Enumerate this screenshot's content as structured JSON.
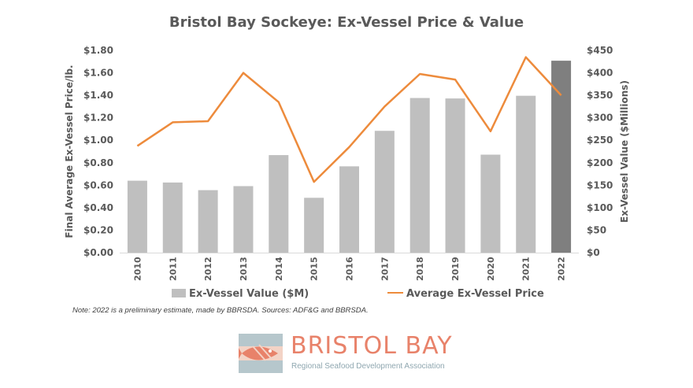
{
  "title": "Bristol Bay Sockeye: Ex-Vessel Price & Value",
  "note": "Note: 2022 is a preliminary estimate, made by BBRSDA. Sources: ADF&G and BBRSDA.",
  "logo": {
    "name": "BRISTOL BAY",
    "subtitle": "Regional Seafood Development Association",
    "brand_color": "#e8826a",
    "sub_color": "#8fa7b0"
  },
  "colors": {
    "bar": "#bfbfbf",
    "bar_highlight": "#7f7f7f",
    "line": "#ed8b3c",
    "text": "#595959"
  },
  "chart_data": {
    "type": "bar",
    "title": "Bristol Bay Sockeye: Ex-Vessel Price & Value",
    "categories": [
      "2010",
      "2011",
      "2012",
      "2013",
      "2014",
      "2015",
      "2016",
      "2017",
      "2018",
      "2019",
      "2020",
      "2021",
      "2022"
    ],
    "series": [
      {
        "name": "Ex-Vessel Value ($M)",
        "type": "bar",
        "axis": "right",
        "values": [
          160,
          156,
          139,
          148,
          217,
          122,
          192,
          271,
          344,
          343,
          218,
          349,
          427
        ],
        "highlight_index": 12
      },
      {
        "name": "Average Ex-Vessel Price",
        "type": "line",
        "axis": "left",
        "values": [
          0.95,
          1.16,
          1.17,
          1.6,
          1.34,
          0.63,
          0.94,
          1.3,
          1.59,
          1.54,
          1.08,
          1.74,
          1.4
        ]
      }
    ],
    "ylabel": "Final Average Ex-Vessel Price/lb.",
    "y2label": "Ex-Vessel Value ($Millions)",
    "ylim": [
      0,
      1.8
    ],
    "y2lim": [
      0,
      450
    ],
    "yticks": [
      "$0.00",
      "$0.20",
      "$0.40",
      "$0.60",
      "$0.80",
      "$1.00",
      "$1.20",
      "$1.40",
      "$1.60",
      "$1.80"
    ],
    "y2ticks": [
      "$0",
      "$50",
      "$100",
      "$150",
      "$200",
      "$250",
      "$300",
      "$350",
      "$400",
      "$450"
    ],
    "grid": false,
    "legend": "bottom"
  }
}
